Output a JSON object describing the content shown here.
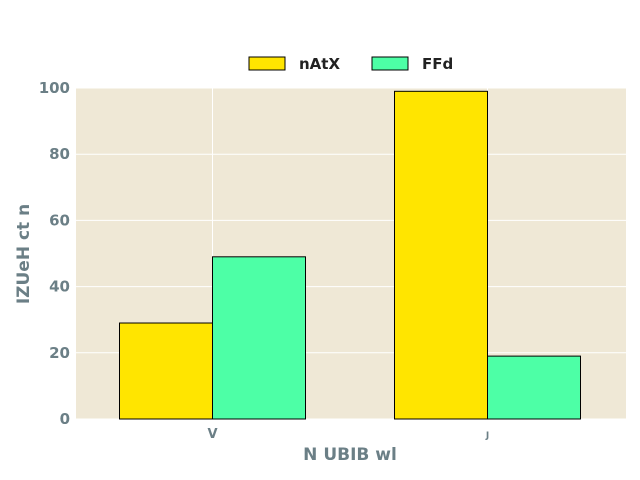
{
  "chart_data": {
    "type": "bar",
    "title": "",
    "xlabel": "N UBIB wl",
    "ylabel": "IZUeH ct n",
    "categories": [
      "V",
      "J"
    ],
    "series": [
      {
        "name": "nAtX",
        "values": [
          29,
          99
        ],
        "color": "#ffe500"
      },
      {
        "name": "FFd",
        "values": [
          49,
          19
        ],
        "color": "#4dffa6"
      }
    ],
    "ylim": [
      0,
      100
    ],
    "yticks": [
      0,
      20,
      40,
      60,
      80,
      100
    ],
    "grid": true,
    "legend_position": "top-center",
    "background_color": "#efe8d6",
    "grid_color": "#ffffff",
    "text_color": "#6b7f86"
  }
}
